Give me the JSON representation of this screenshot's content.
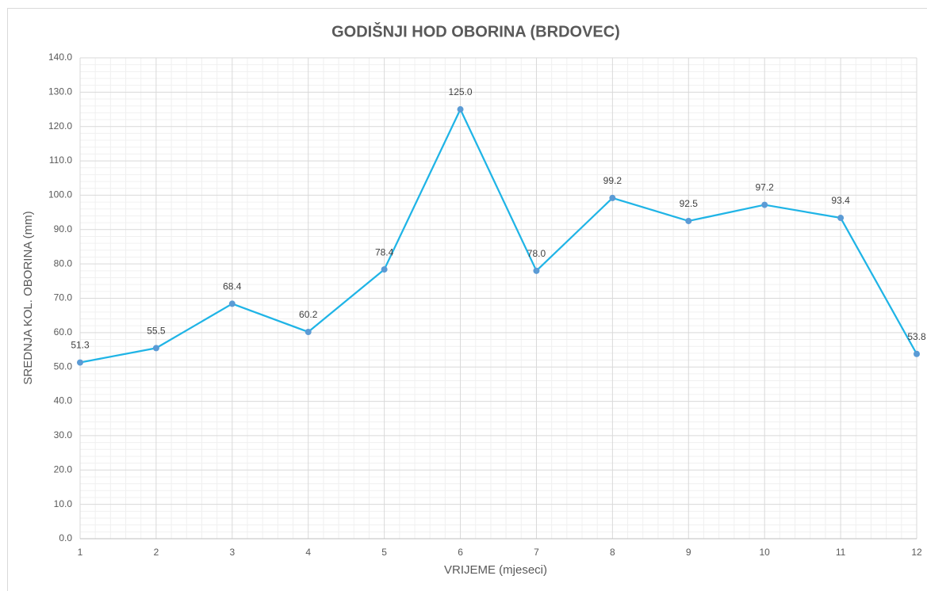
{
  "chart_data": {
    "type": "line",
    "title": "GODIŠNJI HOD OBORINA (BRDOVEC)",
    "xlabel": "VRIJEME (mjeseci)",
    "ylabel": "SREDNJA KOL. OBORINA (mm)",
    "x": [
      1,
      2,
      3,
      4,
      5,
      6,
      7,
      8,
      9,
      10,
      11,
      12
    ],
    "series": [
      {
        "name": "Oborina",
        "color": "#1fb4e6",
        "marker_color": "#5b9bd5",
        "values": [
          51.3,
          55.5,
          68.4,
          60.2,
          78.4,
          125,
          78,
          99.2,
          92.5,
          97.2,
          93.4,
          53.8
        ],
        "value_labels": [
          "51.3",
          "55.5",
          "68.4",
          "60.2",
          "78.4",
          "125.0",
          "78.0",
          "99.2",
          "92.5",
          "97.2",
          "93.4",
          "53.8"
        ]
      }
    ],
    "xlim": [
      1,
      12
    ],
    "xticks": [
      1,
      2,
      3,
      4,
      5,
      6,
      7,
      8,
      9,
      10,
      11,
      12
    ],
    "ylim": [
      0,
      140
    ],
    "yticks": [
      {
        "value": 0,
        "label": "0.0"
      },
      {
        "value": 10,
        "label": "10.0"
      },
      {
        "value": 20,
        "label": "20.0"
      },
      {
        "value": 30,
        "label": "30.0"
      },
      {
        "value": 40,
        "label": "40.0"
      },
      {
        "value": 50,
        "label": "50.0"
      },
      {
        "value": 60,
        "label": "60.0"
      },
      {
        "value": 70,
        "label": "70.0"
      },
      {
        "value": 80,
        "label": "80.0"
      },
      {
        "value": 90,
        "label": "90.0"
      },
      {
        "value": 100,
        "label": "100.0"
      },
      {
        "value": 110,
        "label": "110.0"
      },
      {
        "value": 120,
        "label": "120.0"
      },
      {
        "value": 130,
        "label": "130.0"
      },
      {
        "value": 140,
        "label": "140.0"
      }
    ],
    "grid": true,
    "minor_grid": true
  }
}
